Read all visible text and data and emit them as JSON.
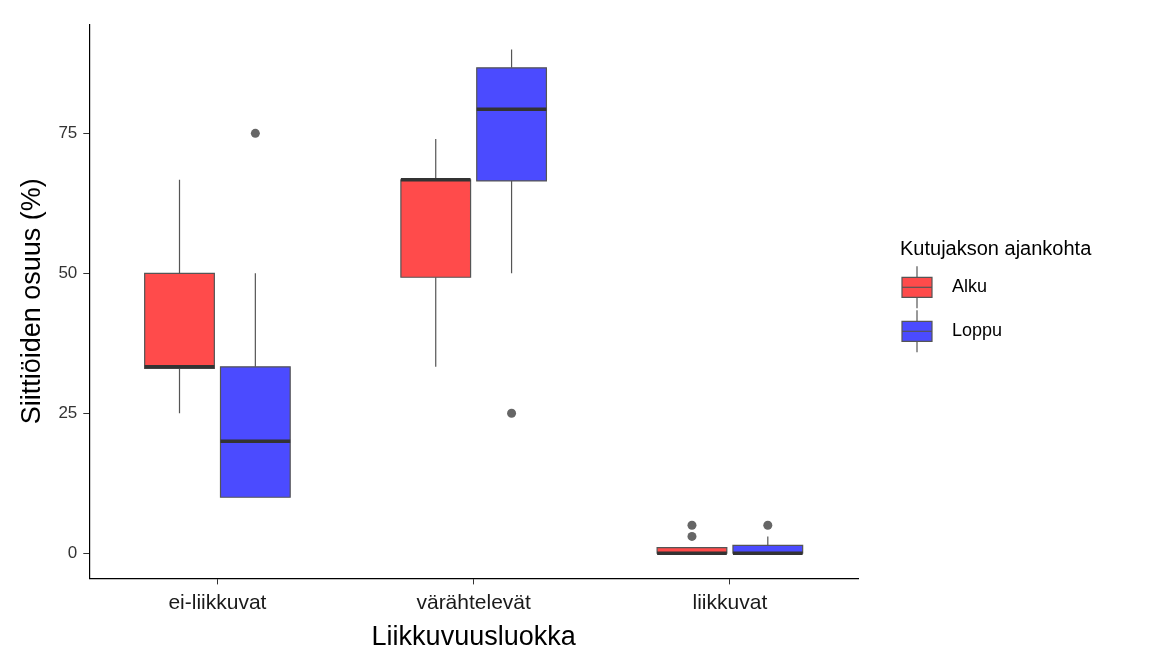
{
  "chart_data": {
    "type": "box",
    "xlabel": "Liikkuvuusluokka",
    "ylabel": "Siittiöiden osuus (%)",
    "legend_title": "Kutujakson ajankohta",
    "legend": "right",
    "grid": false,
    "categories": [
      "ei-liikkuvat",
      "värähtelevät",
      "liikkuvat"
    ],
    "ylim": [
      -4.5,
      94.5
    ],
    "yticks": [
      0,
      25,
      50,
      75
    ],
    "series": [
      {
        "name": "Alku",
        "color": "#ff4b4b",
        "boxes": [
          {
            "low": 25,
            "q1": 33,
            "median": 33.3,
            "q3": 50,
            "high": 66.7
          },
          {
            "low": 33.3,
            "q1": 49.3,
            "median": 66.7,
            "q3": 66.7,
            "high": 74
          },
          {
            "low": 0,
            "q1": 0,
            "median": 0,
            "q3": 1,
            "high": 1,
            "outliers": [
              3,
              5
            ]
          }
        ]
      },
      {
        "name": "Loppu",
        "color": "#4b4bff",
        "boxes": [
          {
            "low": 10,
            "q1": 10,
            "median": 20,
            "q3": 33.3,
            "high": 50,
            "outliers": [
              75
            ]
          },
          {
            "low": 50,
            "q1": 66.5,
            "median": 79.3,
            "q3": 86.7,
            "high": 90,
            "outliers": [
              25
            ]
          },
          {
            "low": 0,
            "q1": 0,
            "median": 0,
            "q3": 1.4,
            "high": 3,
            "outliers": [
              5
            ]
          }
        ]
      }
    ]
  }
}
